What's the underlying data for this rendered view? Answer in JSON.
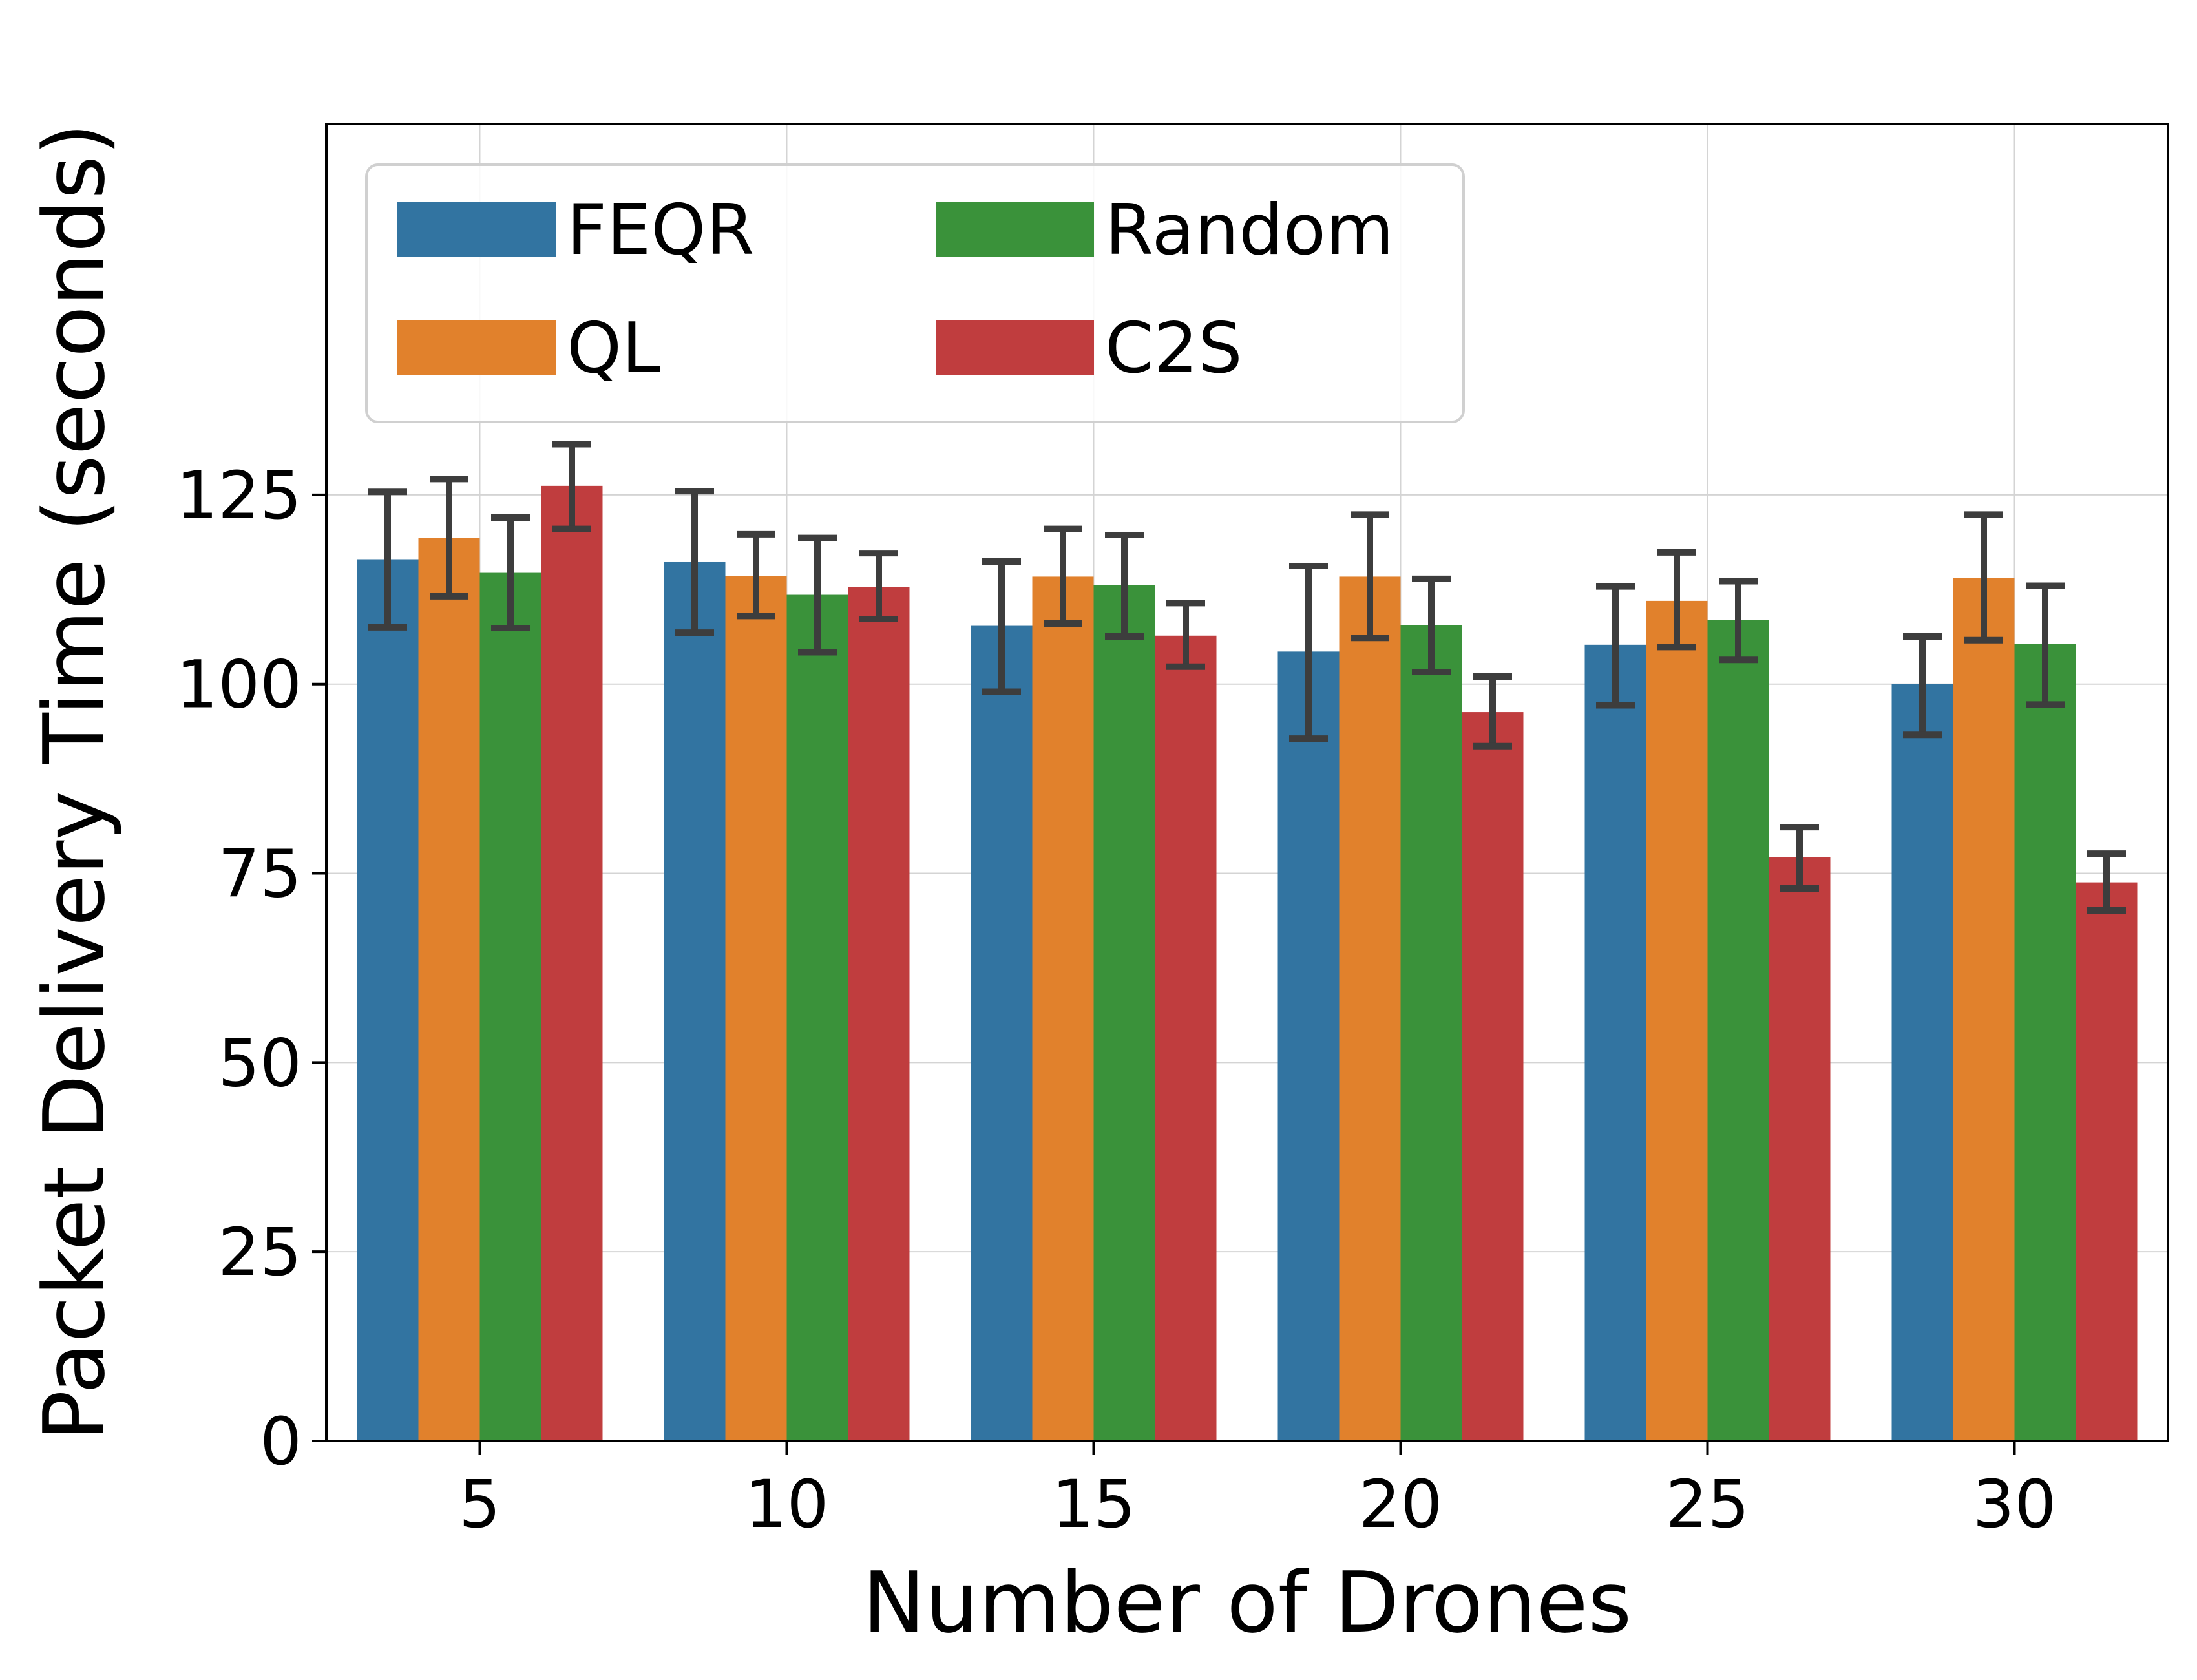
{
  "chart_data": {
    "type": "bar",
    "xlabel": "Number of Drones",
    "ylabel": "Packet Delivery Time (seconds)",
    "categories": [
      "5",
      "10",
      "15",
      "20",
      "25",
      "30"
    ],
    "ylim": [
      0,
      174
    ],
    "yticks": [
      0,
      25,
      50,
      75,
      100,
      125
    ],
    "grid": true,
    "legend": {
      "position": "top-left",
      "columns": 2
    },
    "series": [
      {
        "name": "FEQR",
        "color": "#3274a1",
        "values": [
          116.5,
          116.2,
          107.7,
          104.3,
          105.2,
          100.0
        ],
        "err_low": [
          107.5,
          106.8,
          99.0,
          92.8,
          97.2,
          93.3
        ],
        "err_high": [
          125.4,
          125.5,
          116.2,
          115.6,
          112.9,
          106.3
        ]
      },
      {
        "name": "QL",
        "color": "#e1812c",
        "values": [
          119.3,
          114.3,
          114.2,
          114.2,
          111.0,
          114.0
        ],
        "err_low": [
          111.6,
          109.0,
          108.0,
          106.1,
          104.9,
          105.8
        ],
        "err_high": [
          127.1,
          119.8,
          120.5,
          122.4,
          117.4,
          122.4
        ]
      },
      {
        "name": "Random",
        "color": "#3a923a",
        "values": [
          114.7,
          111.8,
          113.1,
          107.8,
          108.5,
          105.3
        ],
        "err_low": [
          107.4,
          104.2,
          106.3,
          101.6,
          103.2,
          97.3
        ],
        "err_high": [
          122.0,
          119.3,
          119.7,
          113.9,
          113.6,
          113.0
        ]
      },
      {
        "name": "C2S",
        "color": "#c03d3e",
        "values": [
          126.2,
          112.8,
          106.4,
          96.3,
          77.1,
          73.8
        ],
        "err_low": [
          120.5,
          108.6,
          102.3,
          91.8,
          73.0,
          70.1
        ],
        "err_high": [
          131.7,
          117.3,
          110.7,
          101.0,
          81.1,
          77.6
        ]
      }
    ]
  }
}
